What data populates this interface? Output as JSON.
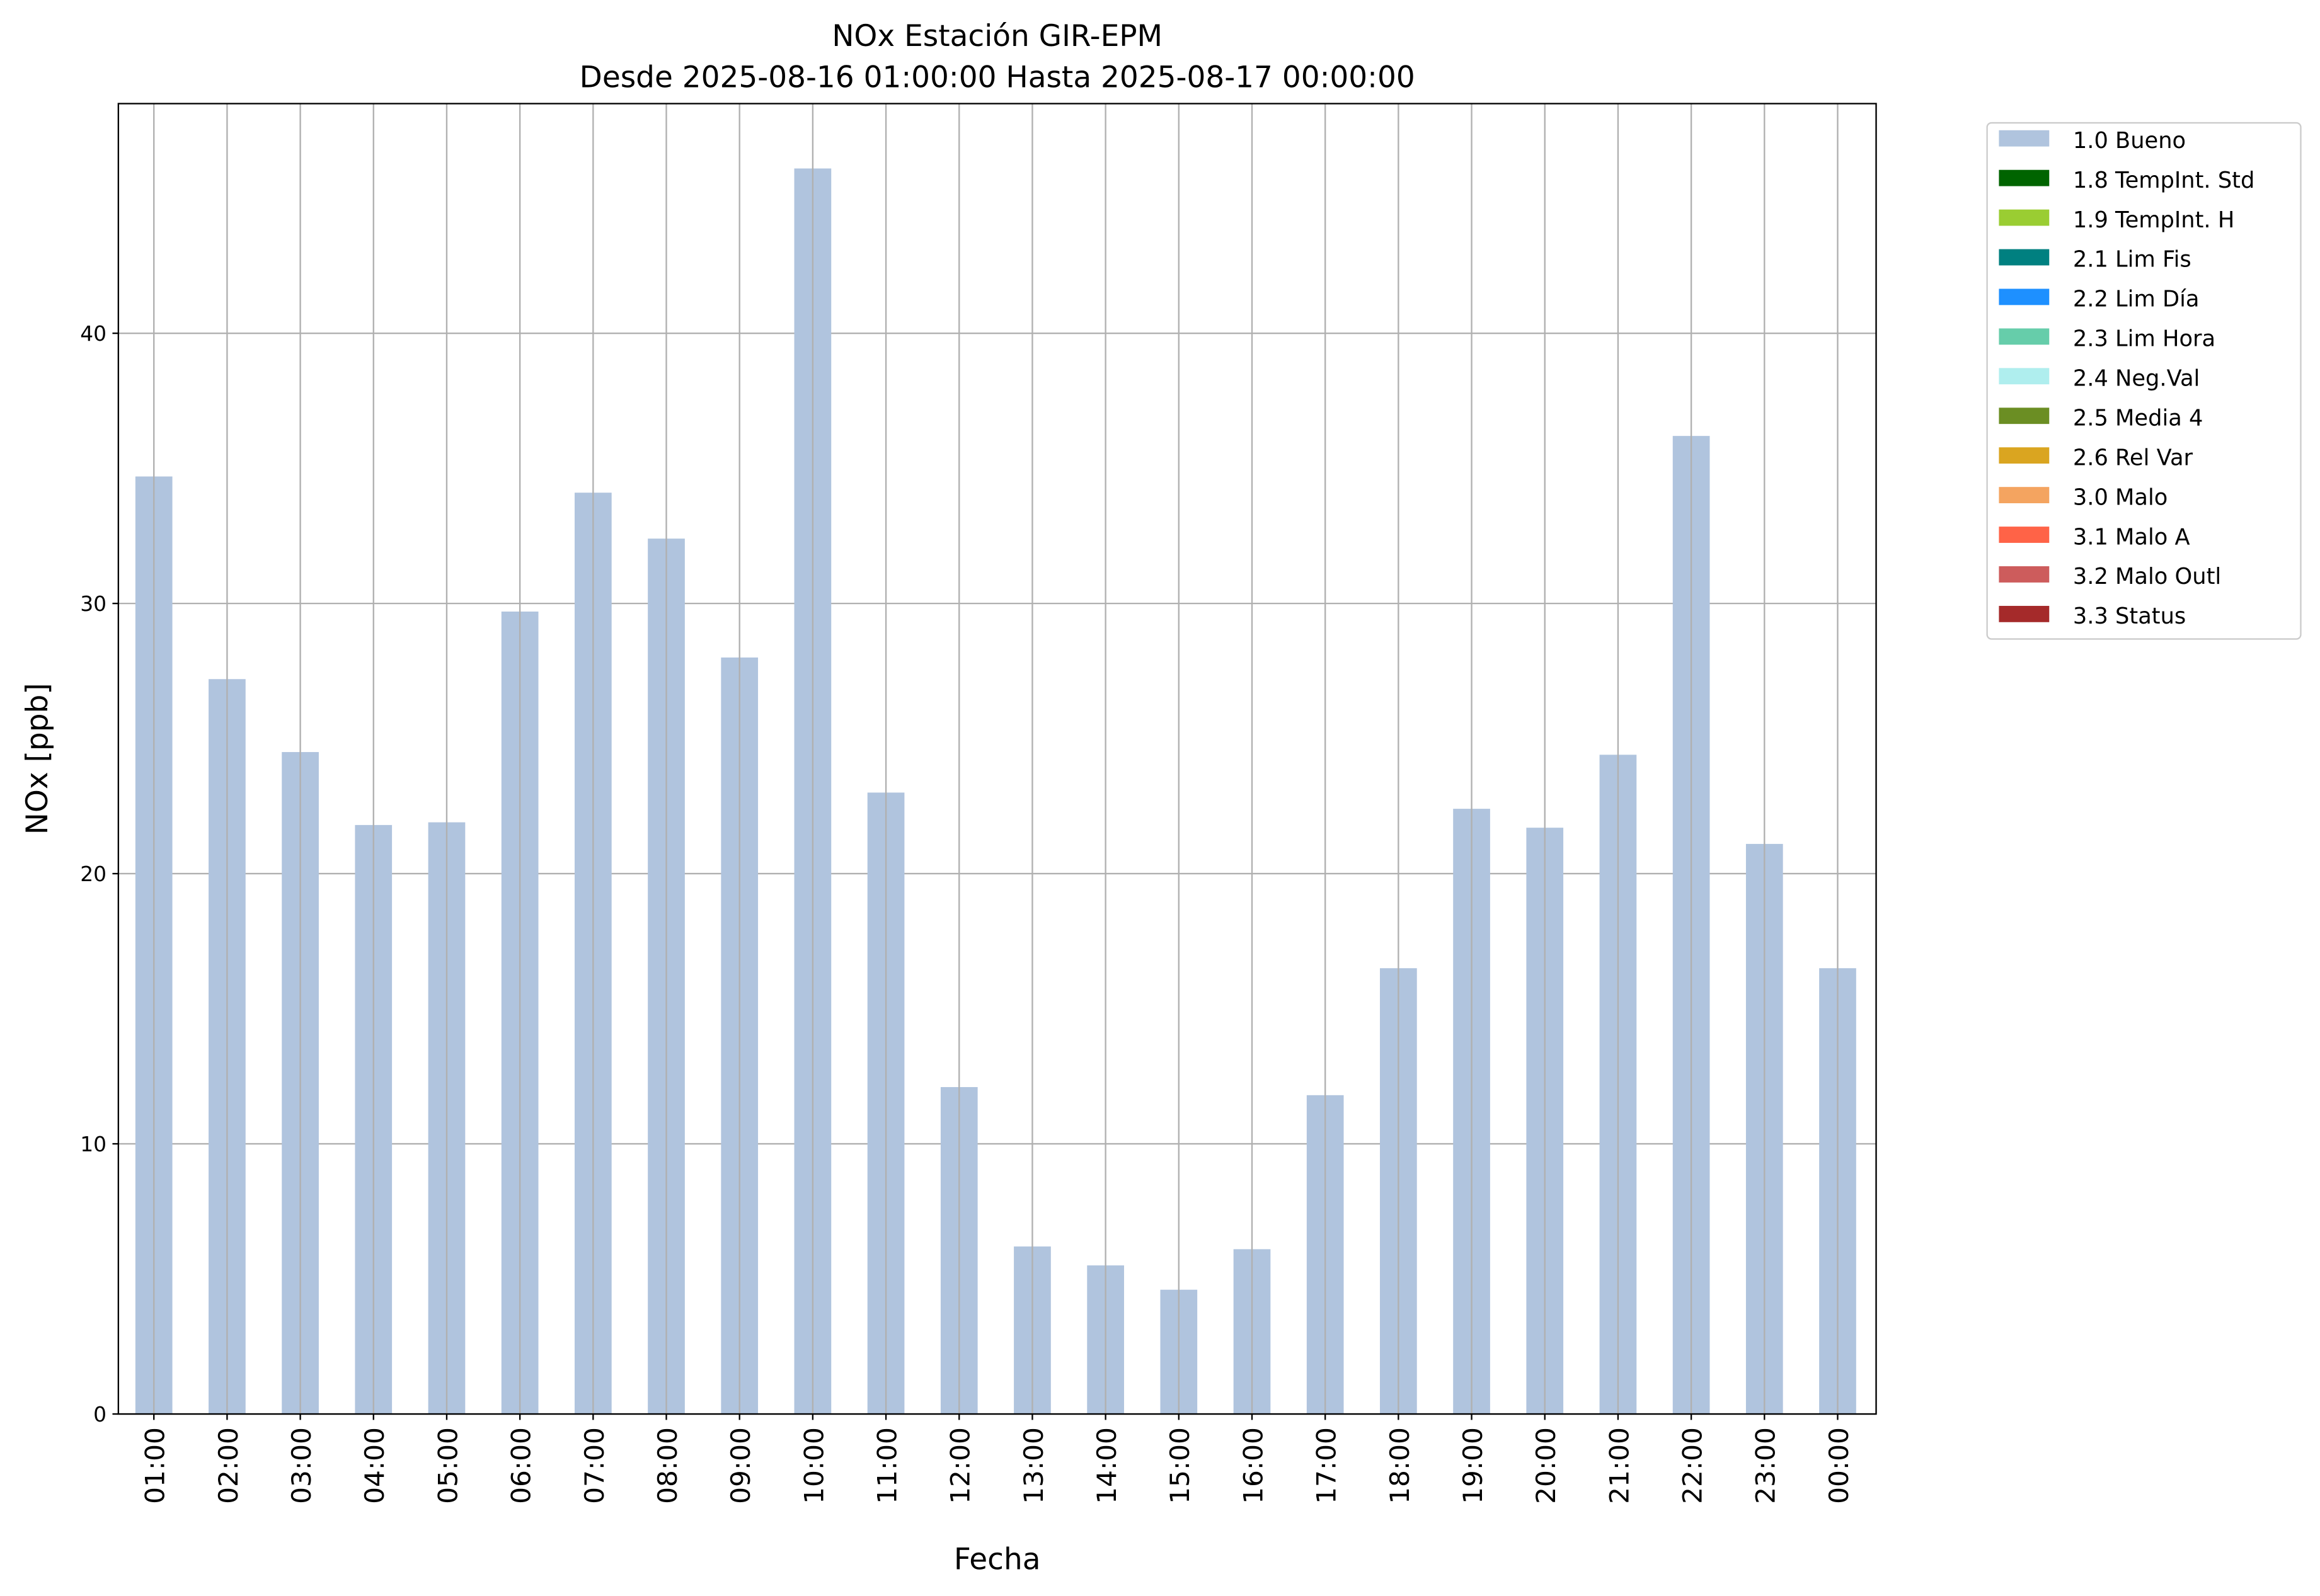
{
  "chart_data": {
    "type": "bar",
    "title": "NOx Estación GIR-EPM",
    "subtitle": "Desde 2025-08-16 01:00:00 Hasta 2025-08-17 00:00:00",
    "xlabel": "Fecha",
    "ylabel": "NOx [ppb]",
    "ylim": [
      0,
      48.5
    ],
    "yticks": [
      0,
      10,
      20,
      30,
      40
    ],
    "grid": true,
    "legend_placement": "outside-top-right",
    "categories": [
      "01:00",
      "02:00",
      "03:00",
      "04:00",
      "05:00",
      "06:00",
      "07:00",
      "08:00",
      "09:00",
      "10:00",
      "11:00",
      "12:00",
      "13:00",
      "14:00",
      "15:00",
      "16:00",
      "17:00",
      "18:00",
      "19:00",
      "20:00",
      "21:00",
      "22:00",
      "23:00",
      "00:00"
    ],
    "series": [
      {
        "name": "1.0 Bueno",
        "color": "#b0c4de",
        "values": [
          34.7,
          27.2,
          24.5,
          21.8,
          21.9,
          29.7,
          34.1,
          32.4,
          28.0,
          46.1,
          23.0,
          12.1,
          6.2,
          5.5,
          4.6,
          6.1,
          11.8,
          16.5,
          22.4,
          21.7,
          24.4,
          36.2,
          21.1,
          16.5
        ]
      }
    ],
    "legend": [
      {
        "label": "1.0 Bueno",
        "color": "#b0c4de"
      },
      {
        "label": "1.8 TempInt. Std",
        "color": "#006400"
      },
      {
        "label": "1.9 TempInt. H",
        "color": "#9acd32"
      },
      {
        "label": "2.1 Lim Fis",
        "color": "#008080"
      },
      {
        "label": "2.2 Lim Día",
        "color": "#1e90ff"
      },
      {
        "label": "2.3 Lim Hora",
        "color": "#66cdaa"
      },
      {
        "label": "2.4 Neg.Val",
        "color": "#afeeee"
      },
      {
        "label": "2.5 Media 4",
        "color": "#6b8e23"
      },
      {
        "label": "2.6 Rel Var",
        "color": "#daa520"
      },
      {
        "label": "3.0 Malo",
        "color": "#f4a460"
      },
      {
        "label": "3.1 Malo A",
        "color": "#ff6347"
      },
      {
        "label": "3.2 Malo Outl",
        "color": "#cd5c5c"
      },
      {
        "label": "3.3 Status",
        "color": "#a52a2a"
      }
    ]
  }
}
